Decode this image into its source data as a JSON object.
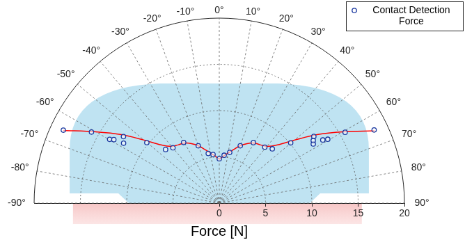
{
  "chart_data": {
    "type": "polar",
    "ylabel": "Force [N]",
    "xlim": [
      -90,
      90
    ],
    "xticks": [
      {
        "value": -90,
        "label": "-90°"
      },
      {
        "value": -80,
        "label": "-80°"
      },
      {
        "value": -70,
        "label": "-70°"
      },
      {
        "value": -60,
        "label": "-60°"
      },
      {
        "value": -50,
        "label": "-50°"
      },
      {
        "value": -40,
        "label": "-40°"
      },
      {
        "value": -30,
        "label": "-30°"
      },
      {
        "value": -20,
        "label": "-20°"
      },
      {
        "value": -10,
        "label": "-10°"
      },
      {
        "value": 0,
        "label": "0°"
      },
      {
        "value": 10,
        "label": "10°"
      },
      {
        "value": 20,
        "label": "20°"
      },
      {
        "value": 30,
        "label": "30°"
      },
      {
        "value": 40,
        "label": "40°"
      },
      {
        "value": 50,
        "label": "50°"
      },
      {
        "value": 60,
        "label": "60°"
      },
      {
        "value": 70,
        "label": "70°"
      },
      {
        "value": 80,
        "label": "80°"
      },
      {
        "value": 90,
        "label": "90°"
      }
    ],
    "ylim": [
      0,
      20
    ],
    "yticks": [
      0,
      5,
      10,
      15,
      20
    ],
    "grid": true,
    "legend": "upper right",
    "series": [
      {
        "name": "Contact Detection Force",
        "type": "scatter",
        "marker": "circle",
        "color": "#17359e",
        "x": [
          -64.9,
          -60.9,
          -59.8,
          -58.9,
          -55.2,
          -57.9,
          -50.1,
          -45.0,
          -39.9,
          -30.4,
          -20.1,
          -12.5,
          -7.3,
          0,
          5.8,
          11.6,
          20.1,
          29.4,
          39.1,
          44.3,
          49.8,
          54.8,
          57.8,
          56.3,
          58.6,
          59.5,
          60.6,
          64.7
        ],
        "values": [
          18.6,
          15.8,
          13.7,
          13.3,
          12.6,
          12.2,
          10.2,
          8.2,
          7.8,
          7.6,
          6.6,
          5.5,
          5.3,
          4.8,
          5.2,
          5.6,
          6.6,
          7.5,
          7.8,
          8.2,
          10.1,
          12.5,
          12.0,
          12.2,
          13.1,
          13.6,
          15.6,
          18.5
        ]
      },
      {
        "type": "line",
        "marker": "none",
        "line_style": "solid",
        "color": "#ff0000",
        "x": [
          -65,
          -60,
          -55,
          -50,
          -45,
          -40,
          -35,
          -30,
          -25,
          -20,
          -15,
          -10,
          -5,
          0,
          5,
          10,
          15,
          20,
          25,
          30,
          35,
          40,
          45,
          50,
          55,
          60,
          65
        ],
        "values": [
          18.6,
          15.4,
          12.9,
          10.6,
          8.9,
          8.0,
          7.7,
          7.5,
          7.1,
          6.6,
          6.0,
          5.5,
          5.1,
          4.8,
          5.1,
          5.5,
          6.0,
          6.6,
          7.1,
          7.5,
          7.7,
          8.0,
          8.9,
          10.6,
          12.9,
          15.4,
          18.5
        ]
      }
    ]
  }
}
